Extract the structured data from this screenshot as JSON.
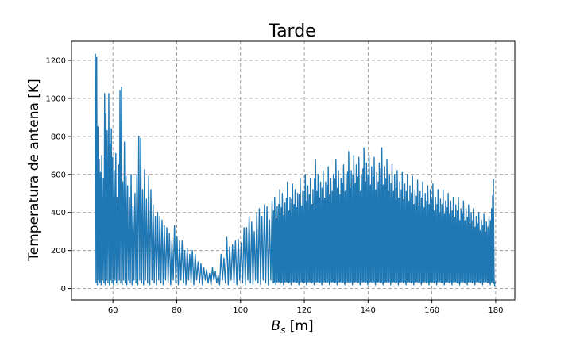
{
  "chart_data": {
    "type": "line",
    "title": "Tarde",
    "xlabel": {
      "main": "B",
      "sub": "s",
      "unit": " [m]"
    },
    "ylabel": "Temperatura de antena [K]",
    "xlim": [
      47,
      186
    ],
    "ylim": [
      -60,
      1300
    ],
    "xticks": [
      60,
      80,
      100,
      120,
      140,
      160,
      180
    ],
    "yticks": [
      0,
      200,
      400,
      600,
      800,
      1000,
      1200
    ],
    "grid": true,
    "legend": "none",
    "colors": {
      "line": "#1f77b4",
      "grid": "#888888",
      "axes": "#000000"
    },
    "series": [
      {
        "description_points": "alternating peaks and troughs (oscillating signal)",
        "peaks": [
          [
            54.5,
            1235
          ],
          [
            54.9,
            1215
          ],
          [
            55.3,
            850
          ],
          [
            55.7,
            680
          ],
          [
            56.1,
            610
          ],
          [
            56.5,
            700
          ],
          [
            57.0,
            580
          ],
          [
            57.4,
            1025
          ],
          [
            57.8,
            920
          ],
          [
            58.2,
            830
          ],
          [
            58.7,
            1025
          ],
          [
            59.1,
            760
          ],
          [
            59.5,
            840
          ],
          [
            59.9,
            690
          ],
          [
            60.4,
            620
          ],
          [
            60.9,
            710
          ],
          [
            61.3,
            480
          ],
          [
            61.8,
            650
          ],
          [
            62.2,
            1040
          ],
          [
            62.7,
            1060
          ],
          [
            63.1,
            560
          ],
          [
            63.6,
            770
          ],
          [
            64.1,
            590
          ],
          [
            64.6,
            540
          ],
          [
            65.2,
            480
          ],
          [
            65.7,
            600
          ],
          [
            66.3,
            430
          ],
          [
            66.9,
            500
          ],
          [
            67.5,
            600
          ],
          [
            68.1,
            800
          ],
          [
            68.7,
            790
          ],
          [
            69.3,
            520
          ],
          [
            69.9,
            625
          ],
          [
            70.5,
            470
          ],
          [
            71.2,
            590
          ],
          [
            71.9,
            520
          ],
          [
            72.6,
            440
          ],
          [
            73.3,
            380
          ],
          [
            74.0,
            400
          ],
          [
            74.7,
            380
          ],
          [
            75.4,
            360
          ],
          [
            76.1,
            330
          ],
          [
            76.9,
            320
          ],
          [
            77.7,
            290
          ],
          [
            78.5,
            250
          ],
          [
            79.3,
            330
          ],
          [
            80.1,
            270
          ],
          [
            80.9,
            250
          ],
          [
            81.7,
            250
          ],
          [
            82.5,
            200
          ],
          [
            83.3,
            210
          ],
          [
            84.1,
            180
          ],
          [
            84.9,
            200
          ],
          [
            85.8,
            180
          ],
          [
            86.7,
            140
          ],
          [
            87.6,
            130
          ],
          [
            88.5,
            110
          ],
          [
            89.4,
            100
          ],
          [
            90.3,
            80
          ],
          [
            91.2,
            110
          ],
          [
            92.1,
            90
          ],
          [
            93.0,
            70
          ],
          [
            93.9,
            180
          ],
          [
            94.8,
            160
          ],
          [
            95.7,
            270
          ],
          [
            96.6,
            220
          ],
          [
            97.5,
            230
          ],
          [
            98.4,
            250
          ],
          [
            99.3,
            260
          ],
          [
            100.2,
            240
          ],
          [
            101.1,
            320
          ],
          [
            101.9,
            320
          ],
          [
            102.7,
            380
          ],
          [
            103.5,
            350
          ],
          [
            104.3,
            300
          ],
          [
            105.1,
            400
          ],
          [
            105.9,
            420
          ],
          [
            106.7,
            380
          ],
          [
            107.5,
            440
          ],
          [
            108.3,
            430
          ],
          [
            109.1,
            360
          ],
          [
            109.9,
            460
          ],
          [
            110.7,
            480
          ],
          [
            111.5,
            430
          ],
          [
            112.3,
            520
          ],
          [
            113.1,
            500
          ],
          [
            113.9,
            450
          ],
          [
            114.7,
            560
          ],
          [
            115.5,
            480
          ],
          [
            116.3,
            550
          ],
          [
            117.1,
            520
          ],
          [
            117.9,
            500
          ],
          [
            118.7,
            580
          ],
          [
            119.5,
            510
          ],
          [
            120.3,
            600
          ],
          [
            121.1,
            540
          ],
          [
            121.9,
            580
          ],
          [
            122.7,
            520
          ],
          [
            123.5,
            680
          ],
          [
            124.3,
            600
          ],
          [
            125.1,
            560
          ],
          [
            125.9,
            620
          ],
          [
            126.7,
            560
          ],
          [
            127.5,
            640
          ],
          [
            128.3,
            580
          ],
          [
            129.1,
            600
          ],
          [
            129.9,
            680
          ],
          [
            130.7,
            620
          ],
          [
            131.5,
            580
          ],
          [
            132.3,
            650
          ],
          [
            133.1,
            600
          ],
          [
            133.9,
            720
          ],
          [
            134.7,
            620
          ],
          [
            135.5,
            700
          ],
          [
            136.3,
            650
          ],
          [
            137.1,
            690
          ],
          [
            137.9,
            600
          ],
          [
            138.7,
            740
          ],
          [
            139.5,
            660
          ],
          [
            140.3,
            700
          ],
          [
            141.1,
            640
          ],
          [
            141.9,
            690
          ],
          [
            142.7,
            610
          ],
          [
            143.5,
            660
          ],
          [
            144.3,
            740
          ],
          [
            145.1,
            640
          ],
          [
            145.9,
            680
          ],
          [
            146.7,
            600
          ],
          [
            147.5,
            650
          ],
          [
            148.3,
            600
          ],
          [
            149.1,
            620
          ],
          [
            149.9,
            560
          ],
          [
            150.7,
            610
          ],
          [
            151.5,
            550
          ],
          [
            152.3,
            600
          ],
          [
            153.1,
            540
          ],
          [
            153.9,
            590
          ],
          [
            154.7,
            520
          ],
          [
            155.5,
            570
          ],
          [
            156.3,
            510
          ],
          [
            157.1,
            560
          ],
          [
            157.9,
            500
          ],
          [
            158.7,
            540
          ],
          [
            159.5,
            520
          ],
          [
            160.3,
            550
          ],
          [
            161.1,
            480
          ],
          [
            161.9,
            520
          ],
          [
            162.7,
            470
          ],
          [
            163.5,
            520
          ],
          [
            164.3,
            460
          ],
          [
            165.1,
            500
          ],
          [
            165.9,
            460
          ],
          [
            166.7,
            480
          ],
          [
            167.5,
            440
          ],
          [
            168.3,
            480
          ],
          [
            169.1,
            420
          ],
          [
            169.9,
            460
          ],
          [
            170.7,
            420
          ],
          [
            171.5,
            440
          ],
          [
            172.3,
            400
          ],
          [
            173.1,
            420
          ],
          [
            173.9,
            380
          ],
          [
            174.7,
            400
          ],
          [
            175.5,
            360
          ],
          [
            176.3,
            390
          ],
          [
            177.1,
            350
          ],
          [
            177.9,
            380
          ],
          [
            178.7,
            420
          ],
          [
            179.3,
            575
          ],
          [
            179.7,
            10
          ]
        ],
        "troughs_level": 20
      }
    ]
  }
}
